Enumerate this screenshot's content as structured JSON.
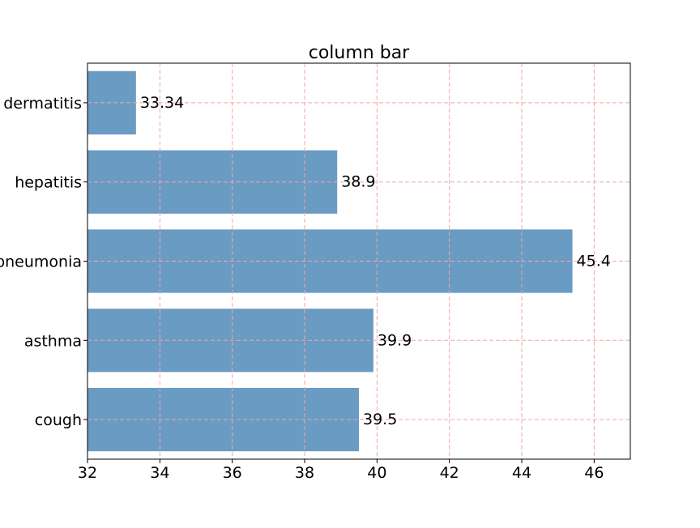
{
  "chart_data": {
    "type": "bar",
    "orientation": "horizontal",
    "title": "column bar",
    "xlabel": "",
    "ylabel": "",
    "categories": [
      "cough",
      "asthma",
      "pneumonia",
      "hepatitis",
      "dermatitis"
    ],
    "values": [
      39.5,
      39.9,
      45.4,
      38.9,
      33.34
    ],
    "value_labels": [
      "39.5",
      "39.9",
      "45.4",
      "38.9",
      "33.34"
    ],
    "xlim": [
      32,
      47
    ],
    "xticks": [
      32,
      34,
      36,
      38,
      40,
      42,
      44,
      46
    ],
    "grid": true,
    "legend": "none",
    "colors": {
      "bar": "#6a9bc3",
      "grid": "#f2a6a6",
      "axis": "#000000",
      "text": "#000000"
    }
  }
}
